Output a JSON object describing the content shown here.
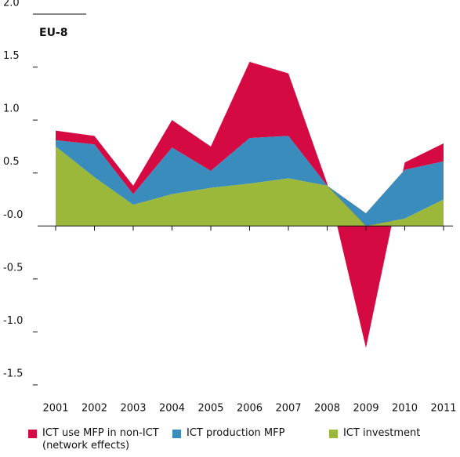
{
  "chart_data": {
    "type": "stacked_area",
    "subtitle": "EU-8",
    "categories": [
      "2001",
      "2002",
      "2003",
      "2004",
      "2005",
      "2006",
      "2007",
      "2008",
      "2009",
      "2010",
      "2011"
    ],
    "series": [
      {
        "name": "ICT use MFP in non-ICT (network effects)",
        "color": "#d50a43",
        "values": [
          0.09,
          0.08,
          0.08,
          0.26,
          0.23,
          0.72,
          0.59,
          0.02,
          -1.27,
          0.07,
          0.17
        ]
      },
      {
        "name": "ICT production MFP",
        "color": "#3a8cbd",
        "values": [
          0.06,
          0.31,
          0.1,
          0.44,
          0.16,
          0.43,
          0.4,
          0.0,
          0.12,
          0.46,
          0.36
        ]
      },
      {
        "name": "ICT investment",
        "color": "#9bb83b",
        "values": [
          0.75,
          0.46,
          0.2,
          0.3,
          0.36,
          0.4,
          0.45,
          0.38,
          0.0,
          0.07,
          0.25
        ]
      }
    ],
    "ylim": [
      -1.5,
      2.0
    ],
    "yticks": [
      {
        "value": 2.0,
        "label": "2.0"
      },
      {
        "value": 1.5,
        "label": "1.5"
      },
      {
        "value": 1.0,
        "label": "1.0"
      },
      {
        "value": 0.5,
        "label": "0.5"
      },
      {
        "value": 0,
        "label": "-0.0"
      },
      {
        "value": -0.5,
        "label": "-0.5"
      },
      {
        "value": -1.0,
        "label": "-1.0"
      },
      {
        "value": -1.5,
        "label": "-1.5"
      }
    ]
  }
}
